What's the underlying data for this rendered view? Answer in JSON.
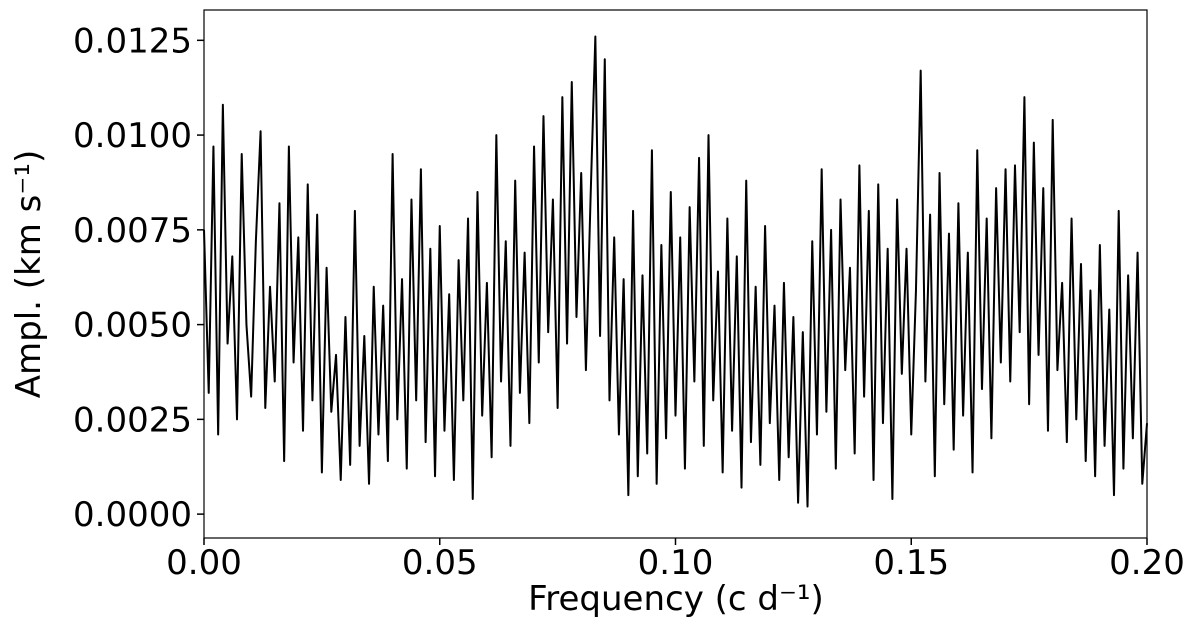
{
  "chart_data": {
    "type": "line",
    "x_label": "Frequency (c d⁻¹)",
    "y_label": "Ampl. (km s⁻¹)",
    "xlim": [
      0,
      0.2
    ],
    "ylim": [
      -0.00063,
      0.0133
    ],
    "xticks": [
      {
        "value": 0,
        "label": "0.00"
      },
      {
        "value": 0.05,
        "label": "0.05"
      },
      {
        "value": 0.1,
        "label": "0.10"
      },
      {
        "value": 0.15,
        "label": "0.15"
      },
      {
        "value": 0.2,
        "label": "0.20"
      }
    ],
    "yticks": [
      {
        "value": 0,
        "label": "0.0000"
      },
      {
        "value": 0.0025,
        "label": "0.0025"
      },
      {
        "value": 0.005,
        "label": "0.0050"
      },
      {
        "value": 0.0075,
        "label": "0.0075"
      },
      {
        "value": 0.01,
        "label": "0.0100"
      },
      {
        "value": 0.0125,
        "label": "0.0125"
      }
    ],
    "x": [
      0.0,
      0.001,
      0.002,
      0.003,
      0.004,
      0.005,
      0.006,
      0.007,
      0.008,
      0.009,
      0.01,
      0.011,
      0.012,
      0.013,
      0.014,
      0.015,
      0.016,
      0.017,
      0.018,
      0.019,
      0.02,
      0.021,
      0.022,
      0.023,
      0.024,
      0.025,
      0.026,
      0.027,
      0.028,
      0.029,
      0.03,
      0.031,
      0.032,
      0.033,
      0.034,
      0.035,
      0.036,
      0.037,
      0.038,
      0.039,
      0.04,
      0.041,
      0.042,
      0.043,
      0.044,
      0.045,
      0.046,
      0.047,
      0.048,
      0.049,
      0.05,
      0.051,
      0.052,
      0.053,
      0.054,
      0.055,
      0.056,
      0.057,
      0.058,
      0.059,
      0.06,
      0.061,
      0.062,
      0.063,
      0.064,
      0.065,
      0.066,
      0.067,
      0.068,
      0.069,
      0.07,
      0.071,
      0.072,
      0.073,
      0.074,
      0.075,
      0.076,
      0.077,
      0.078,
      0.079,
      0.08,
      0.081,
      0.082,
      0.083,
      0.084,
      0.085,
      0.086,
      0.087,
      0.088,
      0.089,
      0.09,
      0.091,
      0.092,
      0.093,
      0.094,
      0.095,
      0.096,
      0.097,
      0.098,
      0.099,
      0.1,
      0.101,
      0.102,
      0.103,
      0.104,
      0.105,
      0.106,
      0.107,
      0.108,
      0.109,
      0.11,
      0.111,
      0.112,
      0.113,
      0.114,
      0.115,
      0.116,
      0.117,
      0.118,
      0.119,
      0.12,
      0.121,
      0.122,
      0.123,
      0.124,
      0.125,
      0.126,
      0.127,
      0.128,
      0.129,
      0.13,
      0.131,
      0.132,
      0.133,
      0.134,
      0.135,
      0.136,
      0.137,
      0.138,
      0.139,
      0.14,
      0.141,
      0.142,
      0.143,
      0.144,
      0.145,
      0.146,
      0.147,
      0.148,
      0.149,
      0.15,
      0.151,
      0.152,
      0.153,
      0.154,
      0.155,
      0.156,
      0.157,
      0.158,
      0.159,
      0.16,
      0.161,
      0.162,
      0.163,
      0.164,
      0.165,
      0.166,
      0.167,
      0.168,
      0.169,
      0.17,
      0.171,
      0.172,
      0.173,
      0.174,
      0.175,
      0.176,
      0.177,
      0.178,
      0.179,
      0.18,
      0.181,
      0.182,
      0.183,
      0.184,
      0.185,
      0.186,
      0.187,
      0.188,
      0.189,
      0.19,
      0.191,
      0.192,
      0.193,
      0.194,
      0.195,
      0.196,
      0.197,
      0.198,
      0.199,
      0.2
    ],
    "series": [
      {
        "color": "#000000",
        "values": [
          0.0075,
          0.0032,
          0.0097,
          0.0021,
          0.0108,
          0.0045,
          0.0068,
          0.0025,
          0.0095,
          0.005,
          0.0031,
          0.0072,
          0.0101,
          0.0028,
          0.006,
          0.0035,
          0.0082,
          0.0014,
          0.0097,
          0.004,
          0.0073,
          0.0022,
          0.0087,
          0.003,
          0.0079,
          0.0011,
          0.0065,
          0.0027,
          0.0042,
          0.0009,
          0.0052,
          0.0013,
          0.008,
          0.0018,
          0.0047,
          0.0008,
          0.006,
          0.0021,
          0.0055,
          0.0014,
          0.0095,
          0.0025,
          0.0062,
          0.0012,
          0.0083,
          0.003,
          0.0091,
          0.0019,
          0.007,
          0.001,
          0.0076,
          0.0022,
          0.0058,
          0.0009,
          0.0067,
          0.003,
          0.0078,
          0.0004,
          0.0085,
          0.0026,
          0.0061,
          0.0015,
          0.01,
          0.0035,
          0.0072,
          0.0018,
          0.0088,
          0.0032,
          0.0069,
          0.0024,
          0.0097,
          0.004,
          0.0105,
          0.0048,
          0.0083,
          0.0028,
          0.011,
          0.0045,
          0.0114,
          0.0052,
          0.009,
          0.0038,
          0.0084,
          0.0126,
          0.0047,
          0.012,
          0.003,
          0.0073,
          0.0021,
          0.0062,
          0.0005,
          0.008,
          0.001,
          0.0063,
          0.0016,
          0.0096,
          0.0008,
          0.0071,
          0.002,
          0.0085,
          0.0026,
          0.0073,
          0.0012,
          0.0081,
          0.0035,
          0.0094,
          0.0018,
          0.01,
          0.003,
          0.0064,
          0.0011,
          0.0078,
          0.0022,
          0.0068,
          0.0007,
          0.0088,
          0.0019,
          0.006,
          0.0013,
          0.0076,
          0.0024,
          0.0055,
          0.0009,
          0.0061,
          0.0015,
          0.0052,
          0.0003,
          0.0048,
          0.0002,
          0.0072,
          0.0021,
          0.0091,
          0.0027,
          0.0075,
          0.0012,
          0.0083,
          0.0038,
          0.0065,
          0.0016,
          0.0092,
          0.0031,
          0.008,
          0.0009,
          0.0087,
          0.0024,
          0.007,
          0.0004,
          0.0083,
          0.0037,
          0.007,
          0.0021,
          0.0059,
          0.0117,
          0.0035,
          0.0079,
          0.001,
          0.009,
          0.0029,
          0.0074,
          0.0017,
          0.0082,
          0.0026,
          0.0069,
          0.0011,
          0.0096,
          0.0033,
          0.0078,
          0.002,
          0.0086,
          0.004,
          0.0091,
          0.0035,
          0.0092,
          0.0048,
          0.011,
          0.0029,
          0.0098,
          0.0042,
          0.0086,
          0.0022,
          0.0104,
          0.0038,
          0.0061,
          0.0019,
          0.0078,
          0.0025,
          0.0066,
          0.0014,
          0.0059,
          0.001,
          0.0071,
          0.0018,
          0.0054,
          0.0005,
          0.008,
          0.0012,
          0.0063,
          0.002,
          0.0069,
          0.0008,
          0.0024
        ]
      }
    ]
  }
}
